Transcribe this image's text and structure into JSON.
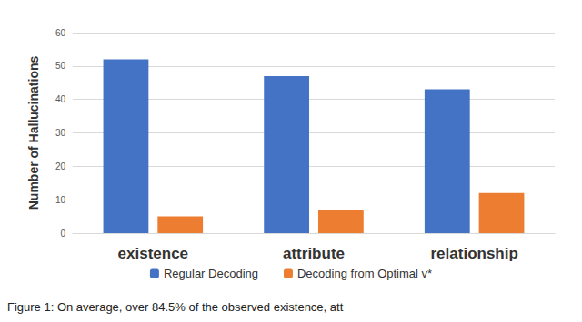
{
  "chart_data": {
    "type": "bar",
    "caption": "Figure 1: On average, over 84.5% of the observed existence, att",
    "y_label": "Number of Hallucinations",
    "categories": [
      "existence",
      "attribute",
      "relationship"
    ],
    "series": [
      {
        "name": "Regular Decoding",
        "color": "#4472c4",
        "values": [
          52,
          47,
          43
        ]
      },
      {
        "name": "Decoding from Optimal v*",
        "color": "#ed7d31",
        "values": [
          5,
          7,
          12
        ]
      }
    ],
    "ylim": [
      0,
      60
    ],
    "yticks": [
      0,
      10,
      20,
      30,
      40,
      50,
      60
    ],
    "grid": true,
    "legend": "bottom"
  }
}
